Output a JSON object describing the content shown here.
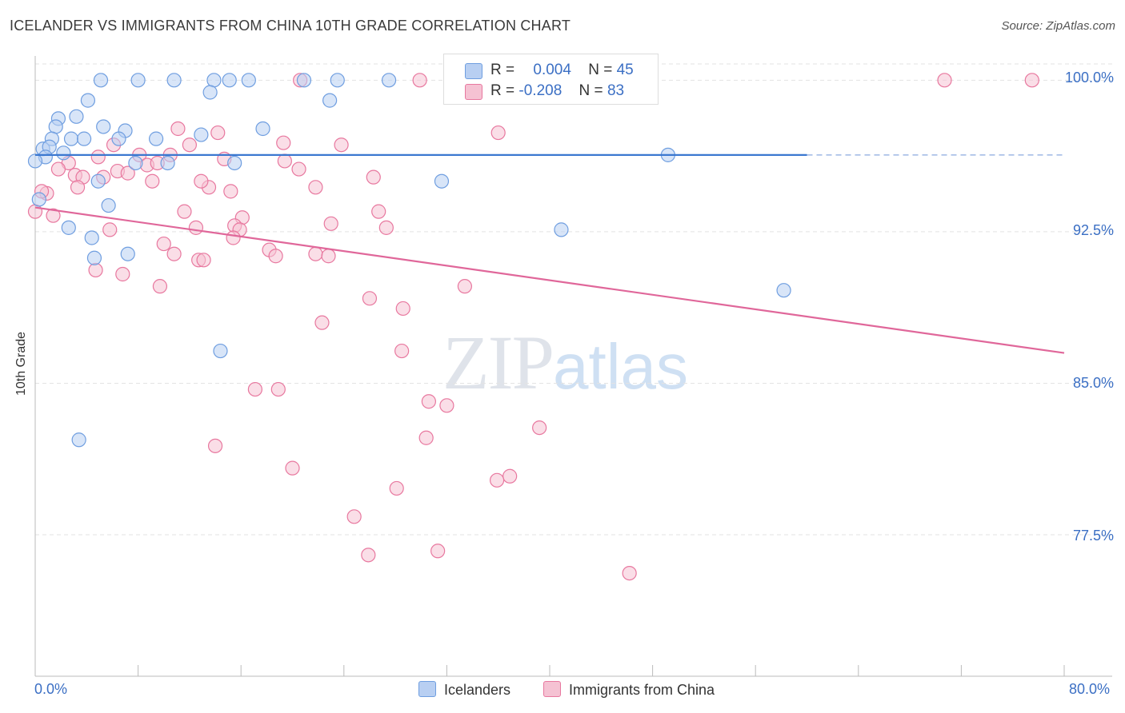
{
  "title": "ICELANDER VS IMMIGRANTS FROM CHINA 10TH GRADE CORRELATION CHART",
  "source": "Source: ZipAtlas.com",
  "watermark": {
    "zip": "ZIP",
    "atlas": "atlas"
  },
  "colors": {
    "blue": "#6f9ee0",
    "blue_fill": "#b8cff2",
    "pink": "#e8789f",
    "pink_fill": "#f5c2d3",
    "blue_line": "#3b78d0",
    "pink_line": "#e0679a",
    "axis_text": "#3b6fc4"
  },
  "legend": {
    "row1": {
      "r_label": "R =",
      "r_value": "0.004",
      "n_label": "N =",
      "n_value": "45"
    },
    "row2": {
      "r_label": "R =",
      "r_value": "-0.208",
      "n_label": "N =",
      "n_value": "83"
    }
  },
  "bottom_legend": {
    "series1": "Icelanders",
    "series2": "Immigrants from China"
  },
  "chart_data": {
    "type": "scatter",
    "title": "ICELANDER VS IMMIGRANTS FROM CHINA 10TH GRADE CORRELATION CHART",
    "xlabel": "",
    "ylabel": "10th Grade",
    "xlim": [
      0,
      80
    ],
    "ylim": [
      70.5,
      101.2
    ],
    "x_tick_labels": [
      "0.0%",
      "80.0%"
    ],
    "y_tick_labels": [
      "100.0%",
      "92.5%",
      "85.0%",
      "77.5%"
    ],
    "y_ticks": [
      100.0,
      92.5,
      85.0,
      77.5
    ],
    "grid": true,
    "legend_position": "top-center",
    "series": [
      {
        "name": "Icelanders",
        "stats": {
          "R": 0.004,
          "N": 45
        },
        "trend": {
          "x": [
            0,
            60
          ],
          "y": [
            96.3,
            96.3
          ],
          "dashed_to_x": 80
        },
        "points": [
          [
            5.1,
            100
          ],
          [
            8.0,
            100
          ],
          [
            10.8,
            100
          ],
          [
            13.9,
            100
          ],
          [
            15.1,
            100
          ],
          [
            16.6,
            100
          ],
          [
            20.9,
            100
          ],
          [
            23.5,
            100
          ],
          [
            27.5,
            100
          ],
          [
            4.1,
            99.0
          ],
          [
            13.6,
            99.4
          ],
          [
            22.9,
            99.0
          ],
          [
            3.2,
            98.2
          ],
          [
            1.8,
            98.1
          ],
          [
            1.6,
            97.7
          ],
          [
            5.3,
            97.7
          ],
          [
            7.0,
            97.5
          ],
          [
            17.7,
            97.6
          ],
          [
            1.3,
            97.1
          ],
          [
            2.8,
            97.1
          ],
          [
            3.8,
            97.1
          ],
          [
            6.5,
            97.1
          ],
          [
            9.4,
            97.1
          ],
          [
            12.9,
            97.3
          ],
          [
            0.6,
            96.6
          ],
          [
            1.1,
            96.7
          ],
          [
            2.2,
            96.4
          ],
          [
            0.8,
            96.2
          ],
          [
            7.8,
            95.9
          ],
          [
            10.3,
            95.9
          ],
          [
            15.5,
            95.9
          ],
          [
            49.2,
            96.3
          ],
          [
            4.9,
            95.0
          ],
          [
            31.6,
            95.0
          ],
          [
            0.3,
            94.1
          ],
          [
            5.7,
            93.8
          ],
          [
            2.6,
            92.7
          ],
          [
            4.4,
            92.2
          ],
          [
            40.9,
            92.6
          ],
          [
            4.6,
            91.2
          ],
          [
            7.2,
            91.4
          ],
          [
            58.2,
            89.6
          ],
          [
            14.4,
            86.6
          ],
          [
            3.4,
            82.2
          ],
          [
            0.0,
            96.0
          ]
        ]
      },
      {
        "name": "Immigrants from China",
        "stats": {
          "R": -0.208,
          "N": 83
        },
        "trend": {
          "x": [
            0,
            80
          ],
          "y": [
            93.7,
            86.5
          ]
        },
        "points": [
          [
            20.6,
            100
          ],
          [
            29.9,
            100
          ],
          [
            32.9,
            100
          ],
          [
            40.6,
            100
          ],
          [
            70.7,
            100
          ],
          [
            77.5,
            100
          ],
          [
            36.0,
            97.4
          ],
          [
            11.1,
            97.6
          ],
          [
            14.2,
            97.4
          ],
          [
            19.3,
            96.9
          ],
          [
            23.8,
            96.8
          ],
          [
            12.0,
            96.8
          ],
          [
            6.1,
            96.8
          ],
          [
            8.1,
            96.3
          ],
          [
            4.9,
            96.2
          ],
          [
            10.5,
            96.3
          ],
          [
            14.7,
            96.1
          ],
          [
            19.4,
            96.0
          ],
          [
            8.7,
            95.8
          ],
          [
            2.6,
            95.9
          ],
          [
            1.8,
            95.6
          ],
          [
            6.4,
            95.5
          ],
          [
            3.1,
            95.3
          ],
          [
            3.7,
            95.2
          ],
          [
            5.3,
            95.2
          ],
          [
            7.2,
            95.4
          ],
          [
            9.1,
            95.0
          ],
          [
            26.3,
            95.2
          ],
          [
            3.3,
            94.7
          ],
          [
            13.5,
            94.7
          ],
          [
            15.2,
            94.5
          ],
          [
            21.8,
            94.7
          ],
          [
            0.9,
            94.4
          ],
          [
            0.5,
            94.5
          ],
          [
            11.6,
            93.5
          ],
          [
            26.7,
            93.5
          ],
          [
            1.4,
            93.3
          ],
          [
            16.1,
            93.2
          ],
          [
            23.0,
            92.9
          ],
          [
            27.3,
            92.7
          ],
          [
            15.5,
            92.8
          ],
          [
            15.9,
            92.6
          ],
          [
            12.5,
            92.7
          ],
          [
            5.8,
            92.6
          ],
          [
            15.4,
            92.2
          ],
          [
            10.0,
            91.9
          ],
          [
            18.2,
            91.6
          ],
          [
            18.7,
            91.3
          ],
          [
            21.8,
            91.4
          ],
          [
            22.8,
            91.3
          ],
          [
            10.8,
            91.4
          ],
          [
            12.7,
            91.1
          ],
          [
            13.1,
            91.1
          ],
          [
            4.7,
            90.6
          ],
          [
            6.8,
            90.4
          ],
          [
            9.7,
            89.8
          ],
          [
            33.4,
            89.8
          ],
          [
            26.0,
            89.2
          ],
          [
            28.6,
            88.7
          ],
          [
            22.3,
            88.0
          ],
          [
            28.5,
            86.6
          ],
          [
            17.1,
            84.7
          ],
          [
            18.9,
            84.7
          ],
          [
            30.6,
            84.1
          ],
          [
            32.0,
            83.9
          ],
          [
            39.2,
            82.8
          ],
          [
            30.4,
            82.3
          ],
          [
            14.0,
            81.9
          ],
          [
            20.0,
            80.8
          ],
          [
            36.9,
            80.4
          ],
          [
            35.9,
            80.2
          ],
          [
            28.1,
            79.8
          ],
          [
            24.8,
            78.4
          ],
          [
            25.9,
            76.5
          ],
          [
            31.3,
            76.7
          ],
          [
            46.2,
            75.6
          ],
          [
            0.0,
            93.5
          ],
          [
            33.2,
            100
          ],
          [
            40.5,
            100
          ],
          [
            40.8,
            99.9
          ],
          [
            9.5,
            95.9
          ],
          [
            20.5,
            95.6
          ],
          [
            12.9,
            95.0
          ]
        ]
      }
    ]
  }
}
